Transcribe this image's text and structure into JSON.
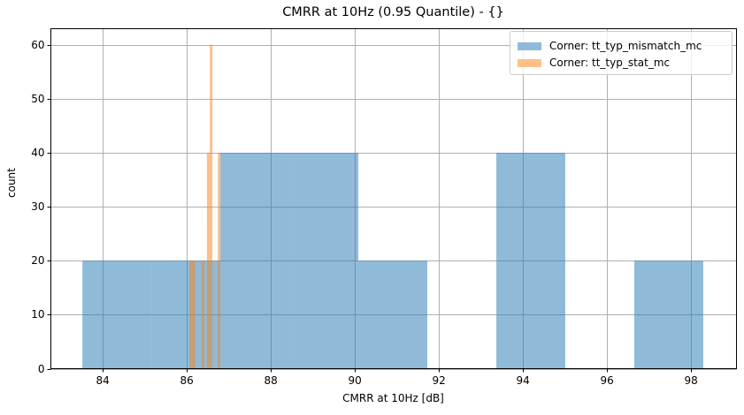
{
  "chart_data": {
    "type": "bar",
    "subtype": "histogram",
    "title": "CMRR at 10Hz (0.95 Quantile) - {}",
    "xlabel": "CMRR at 10Hz [dB]",
    "ylabel": "count",
    "xlim": [
      82.78,
      99.08
    ],
    "ylim": [
      0,
      63
    ],
    "xticks": [
      84,
      86,
      88,
      90,
      92,
      94,
      96,
      98
    ],
    "yticks": [
      0,
      10,
      20,
      30,
      40,
      50,
      60
    ],
    "grid": true,
    "legend_position": "upper right",
    "series": [
      {
        "name": "Corner: tt_typ_mismatch_mc",
        "color": "#1f77b4",
        "alpha": 0.5,
        "bin_edges": [
          83.53,
          85.17,
          86.81,
          88.45,
          90.09,
          91.73,
          93.37,
          95.01,
          96.65,
          98.29
        ],
        "values": [
          20,
          20,
          40,
          40,
          20,
          0,
          40,
          0,
          20
        ]
      },
      {
        "name": "Corner: tt_typ_stat_mc",
        "color": "#ff7f0e",
        "alpha": 0.5,
        "bars": [
          {
            "x0": 86.08,
            "x1": 86.21,
            "count": 20
          },
          {
            "x0": 86.36,
            "x1": 86.43,
            "count": 20
          },
          {
            "x0": 86.49,
            "x1": 86.56,
            "count": 40
          },
          {
            "x0": 86.56,
            "x1": 86.62,
            "count": 60
          },
          {
            "x0": 86.75,
            "x1": 86.81,
            "count": 40
          }
        ]
      }
    ]
  },
  "title": "CMRR at 10Hz (0.95 Quantile) - {}",
  "xlabel": "CMRR at 10Hz [dB]",
  "ylabel": "count",
  "legend": {
    "items": [
      {
        "label": "Corner: tt_typ_mismatch_mc",
        "color": "#8fb9da"
      },
      {
        "label": "Corner: tt_typ_stat_mc",
        "color": "#ffbf86"
      }
    ]
  },
  "colors": {
    "blue_fill": "#8fb9da",
    "orange_fill": "#ffbf86",
    "overlap_fill": "#c79c70",
    "grid": "#b0b0b0",
    "axis": "#000000"
  }
}
